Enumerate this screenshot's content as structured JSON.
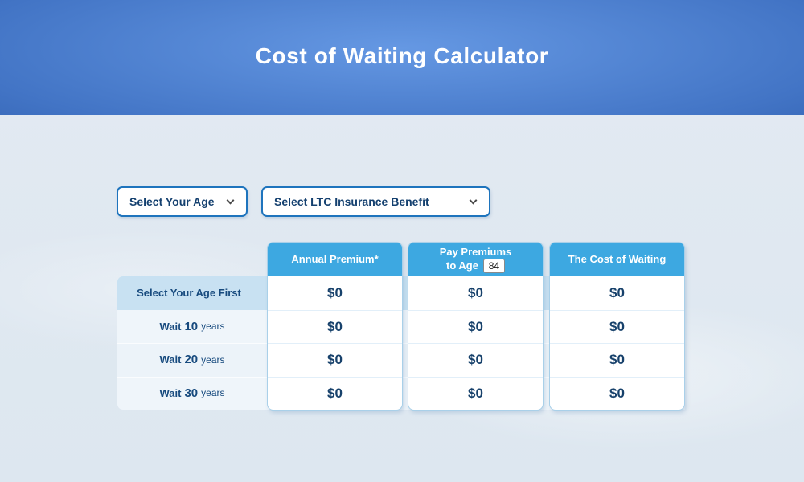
{
  "header": {
    "title": "Cost of Waiting Calculator"
  },
  "filters": {
    "age_select": {
      "label": "Select Your Age"
    },
    "benefit_select": {
      "label": "Select LTC Insurance Benefit"
    }
  },
  "table": {
    "columns": [
      {
        "label": "Annual Premium*"
      },
      {
        "label_line1": "Pay Premiums",
        "label_line2": "to Age",
        "age_value": "84"
      },
      {
        "label": "The Cost of Waiting"
      }
    ],
    "rows": [
      {
        "label_prefix": "Select Your Age First",
        "label_num": "",
        "label_suffix": "",
        "values": [
          "$0",
          "$0",
          "$0"
        ]
      },
      {
        "label_prefix": "Wait",
        "label_num": "10",
        "label_suffix": "years",
        "values": [
          "$0",
          "$0",
          "$0"
        ]
      },
      {
        "label_prefix": "Wait",
        "label_num": "20",
        "label_suffix": "years",
        "values": [
          "$0",
          "$0",
          "$0"
        ]
      },
      {
        "label_prefix": "Wait",
        "label_num": "30",
        "label_suffix": "years",
        "values": [
          "$0",
          "$0",
          "$0"
        ]
      }
    ]
  },
  "colors": {
    "hero_center": "#6598e3",
    "hero_edge": "#16418f",
    "table_header_blue": "#3da8e1",
    "highlight_row_blue": "#c8e1f2",
    "dropdown_border_blue": "#1e74bd",
    "text_navy": "#174a7e",
    "value_navy": "#17416b"
  }
}
